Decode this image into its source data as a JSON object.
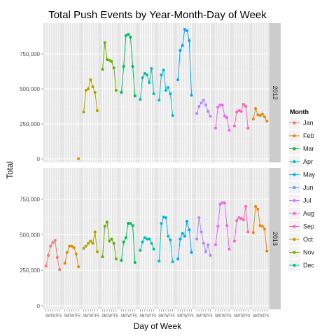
{
  "chart_data": {
    "type": "line",
    "title": "Total Push Events by Year-Month-Day of Week",
    "xlabel": "Day of Week",
    "ylabel": "Total",
    "ylim": [
      -25000,
      970000
    ],
    "y_ticks": [
      0,
      250000,
      500000,
      750000
    ],
    "y_tick_labels": [
      "0",
      "250,000",
      "500,000",
      "750,000"
    ],
    "x_tick_labels": [
      "S",
      "M",
      "T",
      "W",
      "T",
      "F",
      "S"
    ],
    "x_tick_group_labels": [
      "SMTWTFS",
      "SMTWTFS",
      "SMTWTFS",
      "SMTWTFS",
      "SMTWTFS",
      "SMTWTFS",
      "SMTWTFS",
      "SMTWTFS",
      "SMTWTFS",
      "SMTWTFS",
      "SMTWTFS",
      "SMTWTFS"
    ],
    "facets": [
      "2012",
      "2013"
    ],
    "legend": {
      "title": "Month",
      "position": "right",
      "entries": [
        {
          "name": "Jan",
          "color": "#F8766D"
        },
        {
          "name": "Feb",
          "color": "#DE8C00"
        },
        {
          "name": "Mar",
          "color": "#00BA38"
        },
        {
          "name": "Apr",
          "color": "#00BFC4"
        },
        {
          "name": "May",
          "color": "#00B4F0"
        },
        {
          "name": "Jun",
          "color": "#619CFF"
        },
        {
          "name": "Jul",
          "color": "#C77CFF"
        },
        {
          "name": "Aug",
          "color": "#F564E3"
        },
        {
          "name": "Sep",
          "color": "#FF64B0"
        },
        {
          "name": "Oct",
          "color": "#C99800"
        },
        {
          "name": "Nov",
          "color": "#7CAE00"
        },
        {
          "name": "Dec",
          "color": "#00C08B"
        }
      ]
    },
    "series_colors": [
      "#F8766D",
      "#DB8E00",
      "#AEA200",
      "#64B200",
      "#00BD5C",
      "#00C1A7",
      "#00BADE",
      "#00A6FF",
      "#B385FF",
      "#EF67EB",
      "#FF63B6",
      "#E68613"
    ],
    "series": [
      {
        "facet": "2012",
        "month": "Jan",
        "values": [
          null,
          null,
          null,
          null,
          null,
          null,
          null
        ]
      },
      {
        "facet": "2012",
        "month": "Feb",
        "values": [
          null,
          null,
          null,
          null,
          null,
          null,
          2000
        ]
      },
      {
        "facet": "2012",
        "month": "Mar",
        "values": [
          335000,
          490000,
          500000,
          565000,
          515000,
          475000,
          345000
        ]
      },
      {
        "facet": "2012",
        "month": "Apr",
        "values": [
          640000,
          830000,
          710000,
          705000,
          695000,
          650000,
          490000
        ]
      },
      {
        "facet": "2012",
        "month": "May",
        "values": [
          475000,
          660000,
          880000,
          890000,
          870000,
          660000,
          450000
        ]
      },
      {
        "facet": "2012",
        "month": "Jun",
        "values": [
          425000,
          580000,
          610000,
          600000,
          545000,
          645000,
          465000
        ]
      },
      {
        "facet": "2012",
        "month": "Jul",
        "values": [
          420000,
          600000,
          635000,
          490000,
          510000,
          465000,
          310000
        ]
      },
      {
        "facet": "2012",
        "month": "Aug",
        "values": [
          565000,
          775000,
          810000,
          925000,
          915000,
          845000,
          455000
        ]
      },
      {
        "facet": "2012",
        "month": "Sep",
        "values": [
          325000,
          375000,
          400000,
          420000,
          385000,
          340000,
          305000
        ]
      },
      {
        "facet": "2012",
        "month": "Oct",
        "values": [
          220000,
          370000,
          385000,
          385000,
          305000,
          295000,
          205000
        ]
      },
      {
        "facet": "2012",
        "month": "Nov",
        "values": [
          235000,
          335000,
          345000,
          340000,
          390000,
          375000,
          220000
        ]
      },
      {
        "facet": "2012",
        "month": "Dec",
        "values": [
          285000,
          360000,
          315000,
          310000,
          320000,
          300000,
          270000
        ]
      },
      {
        "facet": "2013",
        "month": "Jan",
        "values": [
          280000,
          355000,
          420000,
          445000,
          460000,
          340000,
          255000
        ]
      },
      {
        "facet": "2013",
        "month": "Feb",
        "values": [
          300000,
          375000,
          420000,
          420000,
          410000,
          365000,
          275000
        ]
      },
      {
        "facet": "2013",
        "month": "Mar",
        "values": [
          405000,
          420000,
          440000,
          455000,
          440000,
          520000,
          380000
        ]
      },
      {
        "facet": "2013",
        "month": "Apr",
        "values": [
          345000,
          560000,
          590000,
          455000,
          470000,
          440000,
          330000
        ]
      },
      {
        "facet": "2013",
        "month": "May",
        "values": [
          320000,
          450000,
          480000,
          580000,
          580000,
          565000,
          305000
        ]
      },
      {
        "facet": "2013",
        "month": "Jun",
        "values": [
          390000,
          450000,
          480000,
          470000,
          470000,
          440000,
          400000
        ]
      },
      {
        "facet": "2013",
        "month": "Jul",
        "values": [
          315000,
          580000,
          625000,
          620000,
          490000,
          465000,
          310000
        ]
      },
      {
        "facet": "2013",
        "month": "Aug",
        "values": [
          330000,
          470000,
          510000,
          490000,
          595000,
          535000,
          375000
        ]
      },
      {
        "facet": "2013",
        "month": "Sep",
        "values": [
          470000,
          620000,
          520000,
          440000,
          380000,
          430000,
          355000
        ]
      },
      {
        "facet": "2013",
        "month": "Oct",
        "values": [
          430000,
          560000,
          715000,
          725000,
          725000,
          565000,
          400000
        ]
      },
      {
        "facet": "2013",
        "month": "Nov",
        "values": [
          455000,
          600000,
          620000,
          615000,
          605000,
          700000,
          520000
        ]
      },
      {
        "facet": "2013",
        "month": "Dec",
        "values": [
          515000,
          700000,
          680000,
          565000,
          560000,
          540000,
          385000
        ]
      }
    ]
  }
}
